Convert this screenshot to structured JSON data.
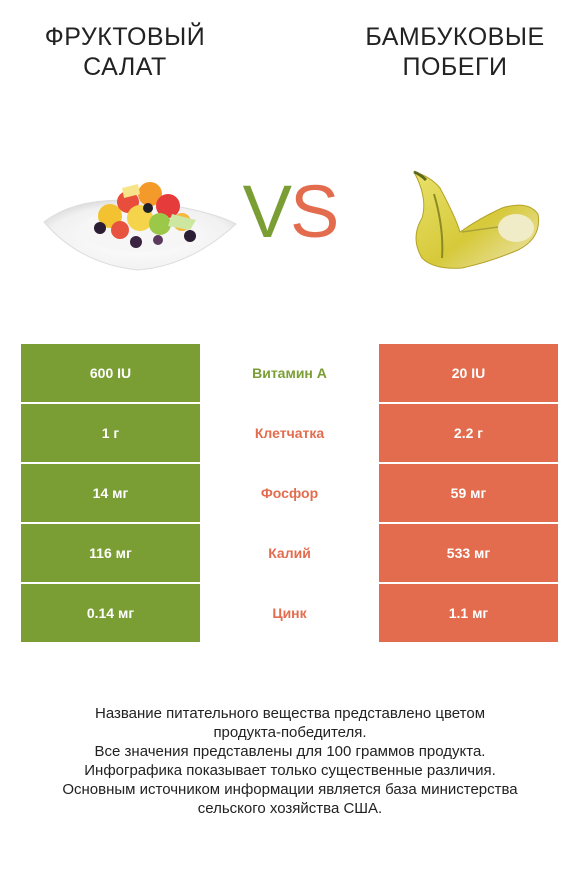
{
  "header": {
    "left_title_line1": "ФРУКТОВЫЙ",
    "left_title_line2": "САЛАТ",
    "right_title_line1": "БАМБУКОВЫЕ",
    "right_title_line2": "ПОБЕГИ",
    "vs_v": "V",
    "vs_s": "S"
  },
  "colors": {
    "left_accent": "#7a9e34",
    "right_accent": "#e36c4e"
  },
  "rows": [
    {
      "left": "600 IU",
      "name": "Витамин А",
      "right": "20 IU",
      "winner": "left"
    },
    {
      "left": "1 г",
      "name": "Клетчатка",
      "right": "2.2 г",
      "winner": "right"
    },
    {
      "left": "14 мг",
      "name": "Фосфор",
      "right": "59 мг",
      "winner": "right"
    },
    {
      "left": "116 мг",
      "name": "Калий",
      "right": "533 мг",
      "winner": "right"
    },
    {
      "left": "0.14 мг",
      "name": "Цинк",
      "right": "1.1 мг",
      "winner": "right"
    }
  ],
  "footer": {
    "line1": "Название питательного вещества представлено цветом",
    "line2": "продукта-победителя.",
    "line3": "Все значения представлены для 100 граммов продукта.",
    "line4": "Инфографика показывает только существенные различия.",
    "line5": "Основным источником информации является база министерства",
    "line6": "сельского хозяйства США."
  }
}
